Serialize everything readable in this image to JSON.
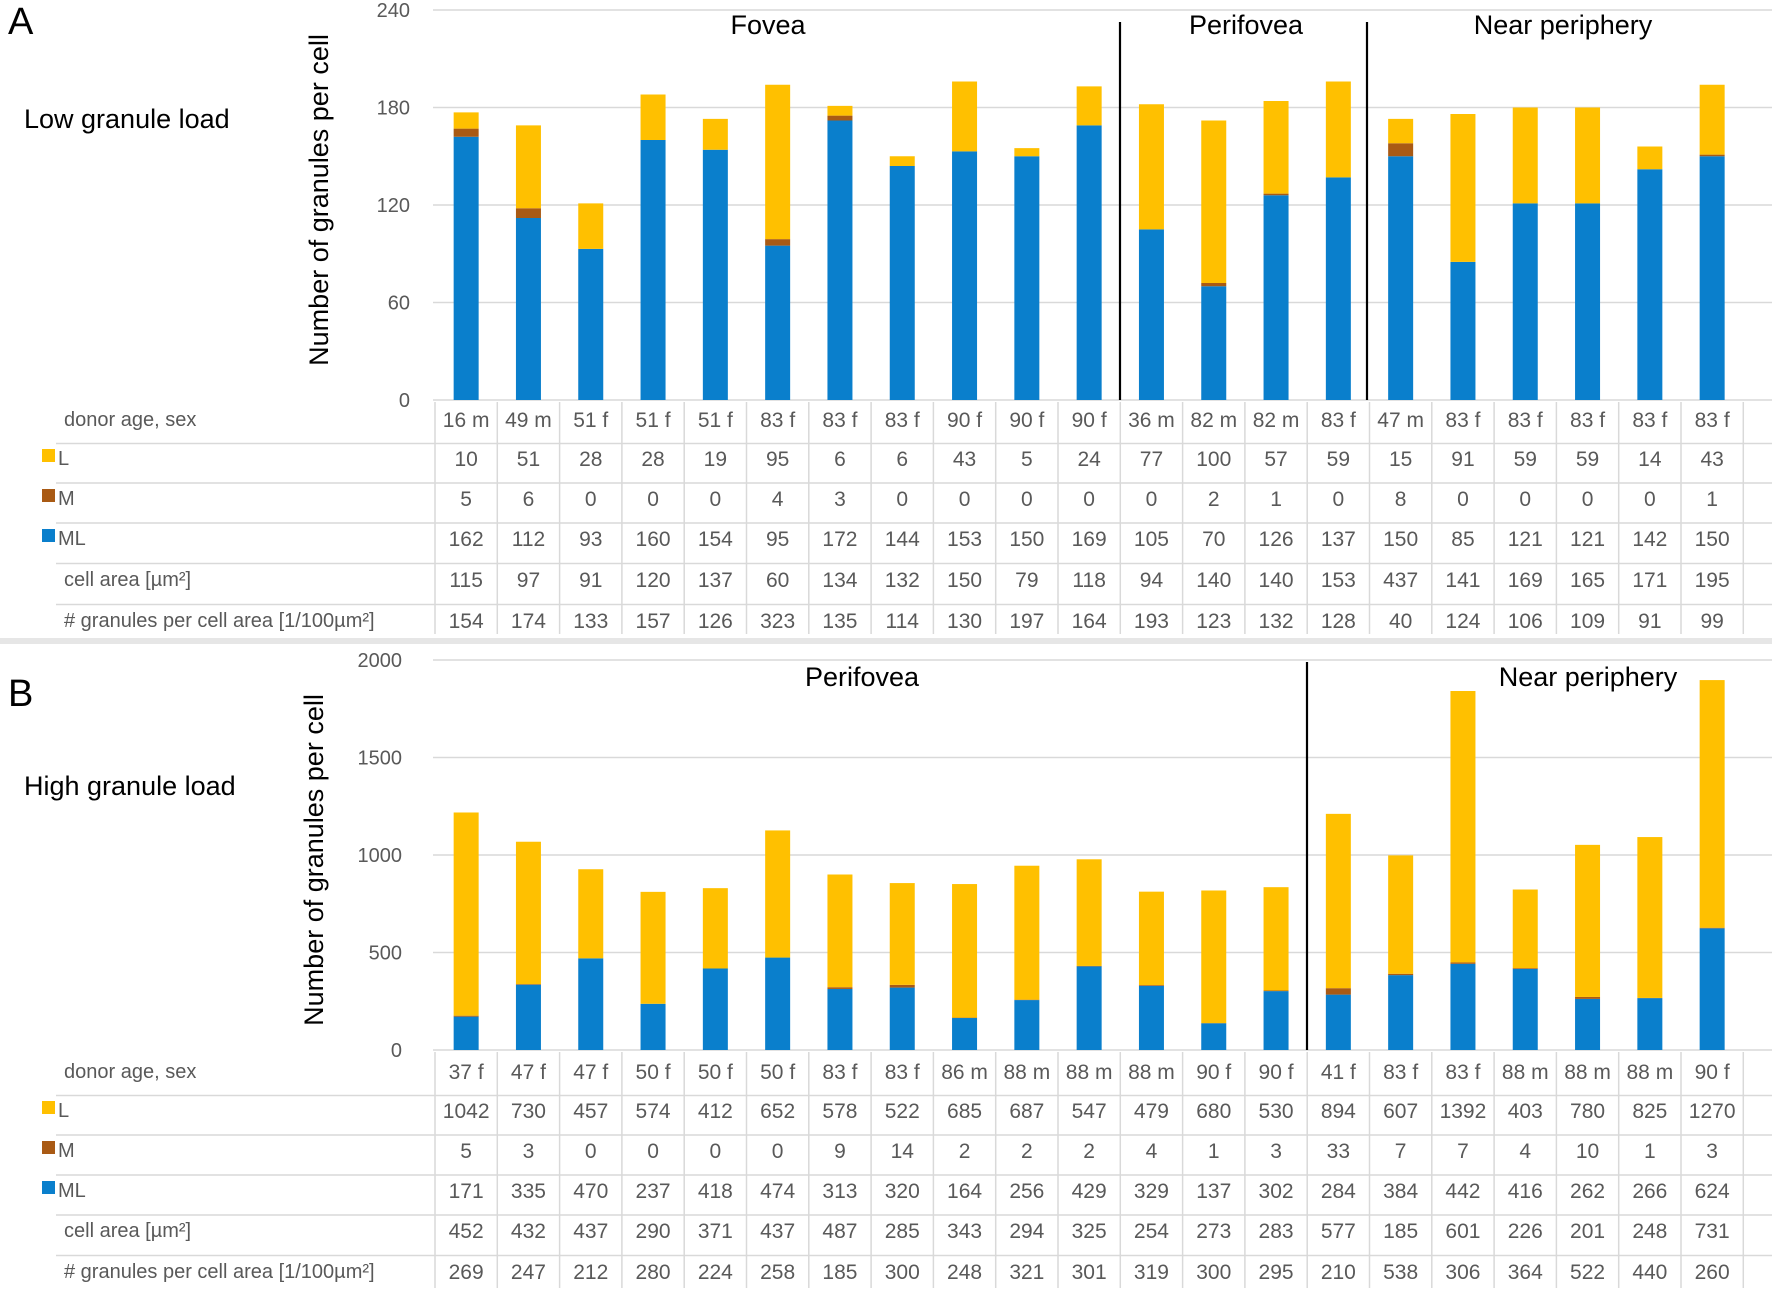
{
  "chart_data": [
    {
      "type": "bar",
      "stacked": true,
      "panel": "A",
      "title": "Low granule load",
      "ylabel": "Number of granules per cell",
      "ylim": [
        0,
        240
      ],
      "yticks": [
        0,
        60,
        120,
        180,
        240
      ],
      "grid": true,
      "regions": [
        {
          "label": "Fovea",
          "start": 0,
          "end": 10
        },
        {
          "label": "Perifovea",
          "start": 11,
          "end": 14
        },
        {
          "label": "Near periphery",
          "start": 15,
          "end": 20
        }
      ],
      "categories": [
        "16 m",
        "49 m",
        "51 f",
        "51 f",
        "51 f",
        "83 f",
        "83 f",
        "83 f",
        "90 f",
        "90 f",
        "90 f",
        "36 m",
        "82 m",
        "82 m",
        "83 f",
        "47 m",
        "83 f",
        "83 f",
        "83 f",
        "83 f",
        "83 f"
      ],
      "series": [
        {
          "name": "ML",
          "color": "#0a7fcc",
          "values": [
            162,
            112,
            93,
            160,
            154,
            95,
            172,
            144,
            153,
            150,
            169,
            105,
            70,
            126,
            137,
            150,
            85,
            121,
            121,
            142,
            150
          ]
        },
        {
          "name": "M",
          "color": "#a95a14",
          "values": [
            5,
            6,
            0,
            0,
            0,
            4,
            3,
            0,
            0,
            0,
            0,
            0,
            2,
            1,
            0,
            8,
            0,
            0,
            0,
            0,
            1
          ]
        },
        {
          "name": "L",
          "color": "#ffc000",
          "values": [
            10,
            51,
            28,
            28,
            19,
            95,
            6,
            6,
            43,
            5,
            24,
            77,
            100,
            57,
            59,
            15,
            91,
            59,
            59,
            14,
            43
          ]
        }
      ],
      "table": {
        "header_label": "donor age, sex",
        "rows": [
          {
            "label": "L",
            "swatch": "#ffc000",
            "values": [
              "10",
              "51",
              "28",
              "28",
              "19",
              "95",
              "6",
              "6",
              "43",
              "5",
              "24",
              "77",
              "100",
              "57",
              "59",
              "15",
              "91",
              "59",
              "59",
              "14",
              "43"
            ]
          },
          {
            "label": "M",
            "swatch": "#a95a14",
            "values": [
              "5",
              "6",
              "0",
              "0",
              "0",
              "4",
              "3",
              "0",
              "0",
              "0",
              "0",
              "0",
              "2",
              "1",
              "0",
              "8",
              "0",
              "0",
              "0",
              "0",
              "1"
            ]
          },
          {
            "label": "ML",
            "swatch": "#0a7fcc",
            "values": [
              "162",
              "112",
              "93",
              "160",
              "154",
              "95",
              "172",
              "144",
              "153",
              "150",
              "169",
              "105",
              "70",
              "126",
              "137",
              "150",
              "85",
              "121",
              "121",
              "142",
              "150"
            ]
          },
          {
            "label": "cell area [µm²]",
            "swatch": null,
            "values": [
              "115",
              "97",
              "91",
              "120",
              "137",
              "60",
              "134",
              "132",
              "150",
              "79",
              "118",
              "94",
              "140",
              "140",
              "153",
              "437",
              "141",
              "169",
              "165",
              "171",
              "195"
            ]
          },
          {
            "label": "# granules per cell area [1/100µm²]",
            "swatch": null,
            "values": [
              "154",
              "174",
              "133",
              "157",
              "126",
              "323",
              "135",
              "114",
              "130",
              "197",
              "164",
              "193",
              "123",
              "132",
              "128",
              "40",
              "124",
              "106",
              "109",
              "91",
              "99"
            ]
          }
        ]
      }
    },
    {
      "type": "bar",
      "stacked": true,
      "panel": "B",
      "title": "High granule load",
      "ylabel": "Number of granules per cell",
      "ylim": [
        0,
        2000
      ],
      "yticks": [
        0,
        500,
        1000,
        1500,
        2000
      ],
      "grid": true,
      "regions": [
        {
          "label": "Perifovea",
          "start": 0,
          "end": 13
        },
        {
          "label": "Near periphery",
          "start": 14,
          "end": 20
        }
      ],
      "categories": [
        "37 f",
        "47 f",
        "47 f",
        "50 f",
        "50 f",
        "50 f",
        "83 f",
        "83 f",
        "86 m",
        "88 m",
        "88 m",
        "88 m",
        "90 f",
        "90 f",
        "41 f",
        "83 f",
        "83 f",
        "88 m",
        "88 m",
        "88 m",
        "90 f"
      ],
      "series": [
        {
          "name": "ML",
          "color": "#0a7fcc",
          "values": [
            171,
            335,
            470,
            237,
            418,
            474,
            313,
            320,
            164,
            256,
            429,
            329,
            137,
            302,
            284,
            384,
            442,
            416,
            262,
            266,
            624
          ]
        },
        {
          "name": "M",
          "color": "#a95a14",
          "values": [
            5,
            3,
            0,
            0,
            0,
            0,
            9,
            14,
            2,
            2,
            2,
            4,
            1,
            3,
            33,
            7,
            7,
            4,
            10,
            1,
            3
          ]
        },
        {
          "name": "L",
          "color": "#ffc000",
          "values": [
            1042,
            730,
            457,
            574,
            412,
            652,
            578,
            522,
            685,
            687,
            547,
            479,
            680,
            530,
            894,
            607,
            1392,
            403,
            780,
            825,
            1270
          ]
        }
      ],
      "table": {
        "header_label": "donor age, sex",
        "rows": [
          {
            "label": "L",
            "swatch": "#ffc000",
            "values": [
              "1042",
              "730",
              "457",
              "574",
              "412",
              "652",
              "578",
              "522",
              "685",
              "687",
              "547",
              "479",
              "680",
              "530",
              "894",
              "607",
              "1392",
              "403",
              "780",
              "825",
              "1270"
            ]
          },
          {
            "label": "M",
            "swatch": "#a95a14",
            "values": [
              "5",
              "3",
              "0",
              "0",
              "0",
              "0",
              "9",
              "14",
              "2",
              "2",
              "2",
              "4",
              "1",
              "3",
              "33",
              "7",
              "7",
              "4",
              "10",
              "1",
              "3"
            ]
          },
          {
            "label": "ML",
            "swatch": "#0a7fcc",
            "values": [
              "171",
              "335",
              "470",
              "237",
              "418",
              "474",
              "313",
              "320",
              "164",
              "256",
              "429",
              "329",
              "137",
              "302",
              "284",
              "384",
              "442",
              "416",
              "262",
              "266",
              "624"
            ]
          },
          {
            "label": "cell area [µm²]",
            "swatch": null,
            "values": [
              "452",
              "432",
              "437",
              "290",
              "371",
              "437",
              "487",
              "285",
              "343",
              "294",
              "325",
              "254",
              "273",
              "283",
              "577",
              "185",
              "601",
              "226",
              "201",
              "248",
              "731"
            ]
          },
          {
            "label": "# granules per cell area [1/100µm²]",
            "swatch": null,
            "values": [
              "269",
              "247",
              "212",
              "280",
              "224",
              "258",
              "185",
              "300",
              "248",
              "321",
              "301",
              "319",
              "300",
              "295",
              "210",
              "538",
              "306",
              "364",
              "522",
              "440",
              "260"
            ]
          }
        ]
      }
    }
  ]
}
